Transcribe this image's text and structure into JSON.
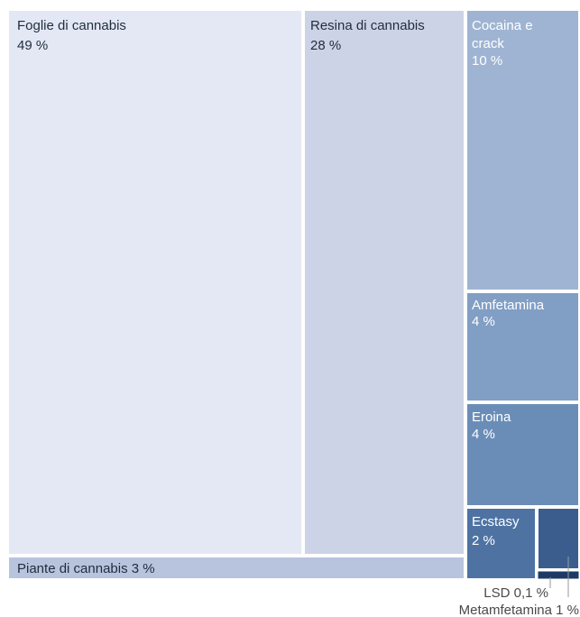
{
  "chart_data": {
    "type": "treemap",
    "title": "",
    "unit": "%",
    "items": [
      {
        "name": "Foglie di cannabis",
        "value": 49,
        "value_label": "49 %",
        "color": "#e4e8f4"
      },
      {
        "name": "Resina di cannabis",
        "value": 28,
        "value_label": "28 %",
        "color": "#cdd3e6"
      },
      {
        "name": "Cocaina e crack",
        "value": 10,
        "value_label": "10 %",
        "color": "#9fb4d3"
      },
      {
        "name": "Amfetamina",
        "value": 4,
        "value_label": "4 %",
        "color": "#819ec4"
      },
      {
        "name": "Eroina",
        "value": 4,
        "value_label": "4 %",
        "color": "#6a8db7"
      },
      {
        "name": "Piante di cannabis",
        "value": 3,
        "value_label": "3 %",
        "color": "#b8c3de"
      },
      {
        "name": "Ecstasy",
        "value": 2,
        "value_label": "2 %",
        "color": "#4e73a3"
      },
      {
        "name": "Metamfetamina",
        "value": 1,
        "value_label": "1 %",
        "color": "#3b5d8e"
      },
      {
        "name": "LSD",
        "value": 0.1,
        "value_label": "0,1 %",
        "color": "#1d3a66"
      }
    ],
    "labels": {
      "foglie_name": "Foglie di cannabis",
      "foglie_value": "49 %",
      "resina_name": "Resina di cannabis",
      "resina_value": "28 %",
      "cocaina_line1": "Cocaina e",
      "cocaina_line2": "crack",
      "cocaina_value": "10 %",
      "amfetamina_name": "Amfetamina",
      "amfetamina_value": "4 %",
      "eroina_name": "Eroina",
      "eroina_value": "4 %",
      "piante_label": "Piante di cannabis 3 %",
      "ecstasy_name": "Ecstasy",
      "ecstasy_value": "2 %",
      "lsd_callout": "LSD 0,1 %",
      "metamfetamina_callout": "Metamfetamina 1 %"
    }
  }
}
